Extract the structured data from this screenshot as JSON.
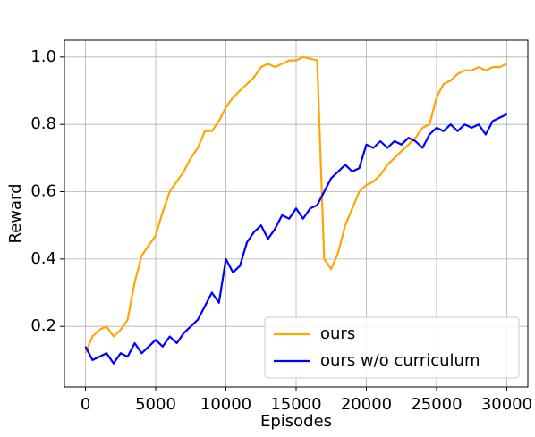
{
  "chart_data": {
    "type": "line",
    "x_label": "Episodes",
    "y_label": "Reward",
    "x": [
      0,
      500,
      1000,
      1500,
      2000,
      2500,
      3000,
      3500,
      4000,
      4500,
      5000,
      5500,
      6000,
      6500,
      7000,
      7500,
      8000,
      8500,
      9000,
      9500,
      10000,
      10500,
      11000,
      11500,
      12000,
      12500,
      13000,
      13500,
      14000,
      14500,
      15000,
      15500,
      16000,
      16500,
      17000,
      17500,
      18000,
      18500,
      19000,
      19500,
      20000,
      20500,
      21000,
      21500,
      22000,
      22500,
      23000,
      23500,
      24000,
      24500,
      25000,
      25500,
      26000,
      26500,
      27000,
      27500,
      28000,
      28500,
      29000,
      29500,
      30000
    ],
    "series": [
      {
        "name": "ours",
        "color": "#ffa500",
        "values": [
          0.12,
          0.17,
          0.19,
          0.2,
          0.17,
          0.19,
          0.22,
          0.33,
          0.41,
          0.44,
          0.47,
          0.54,
          0.6,
          0.63,
          0.66,
          0.7,
          0.73,
          0.78,
          0.78,
          0.81,
          0.85,
          0.88,
          0.9,
          0.92,
          0.94,
          0.97,
          0.98,
          0.97,
          0.98,
          0.99,
          0.99,
          1.0,
          0.995,
          0.99,
          0.4,
          0.37,
          0.42,
          0.5,
          0.55,
          0.6,
          0.62,
          0.63,
          0.65,
          0.68,
          0.7,
          0.72,
          0.74,
          0.76,
          0.79,
          0.8,
          0.88,
          0.92,
          0.93,
          0.95,
          0.96,
          0.96,
          0.97,
          0.96,
          0.97,
          0.97,
          0.98
        ]
      },
      {
        "name": "ours w/o curriculum",
        "color": "#0000ff",
        "values": [
          0.14,
          0.1,
          0.11,
          0.12,
          0.09,
          0.12,
          0.11,
          0.15,
          0.12,
          0.14,
          0.16,
          0.14,
          0.17,
          0.15,
          0.18,
          0.2,
          0.22,
          0.26,
          0.3,
          0.27,
          0.4,
          0.36,
          0.38,
          0.45,
          0.48,
          0.5,
          0.46,
          0.49,
          0.53,
          0.52,
          0.55,
          0.52,
          0.55,
          0.56,
          0.6,
          0.64,
          0.66,
          0.68,
          0.66,
          0.67,
          0.74,
          0.73,
          0.75,
          0.73,
          0.75,
          0.74,
          0.76,
          0.75,
          0.73,
          0.77,
          0.79,
          0.78,
          0.8,
          0.78,
          0.8,
          0.79,
          0.8,
          0.77,
          0.81,
          0.82,
          0.83
        ]
      }
    ],
    "xlim": [
      -1500,
      31500
    ],
    "ylim": [
      0.02,
      1.05
    ],
    "xticks": [
      0,
      5000,
      10000,
      15000,
      20000,
      25000,
      30000
    ],
    "yticks": [
      0.2,
      0.4,
      0.6,
      0.8,
      {
        "value": 1,
        "label": "1.0"
      }
    ],
    "grid": true,
    "legend": "lower right"
  }
}
